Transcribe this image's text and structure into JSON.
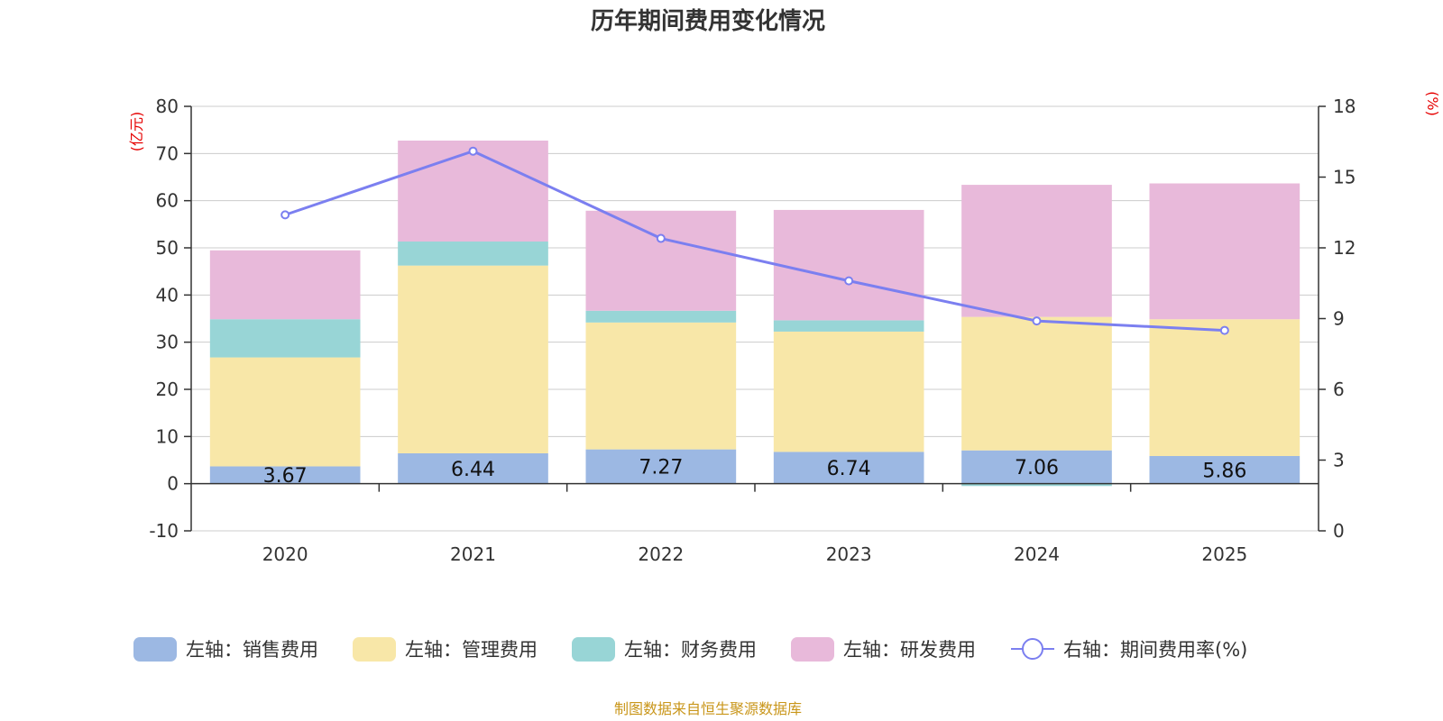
{
  "chart_data": {
    "type": "bar",
    "title": "历年期间费用变化情况",
    "categories": [
      "2020",
      "2021",
      "2022",
      "2023",
      "2024",
      "2025"
    ],
    "stacked": true,
    "series": [
      {
        "name": "左轴：销售费用",
        "axis": "left",
        "color": "#9cb8e3",
        "values": [
          3.67,
          6.44,
          7.27,
          6.74,
          7.06,
          5.86
        ],
        "labels": [
          "3.67",
          "6.44",
          "7.27",
          "6.74",
          "7.06",
          "5.86"
        ]
      },
      {
        "name": "左轴：管理费用",
        "axis": "left",
        "color": "#f8e7a8",
        "values": [
          23.1,
          39.8,
          26.9,
          25.5,
          28.3,
          29.0
        ]
      },
      {
        "name": "左轴：财务费用",
        "axis": "left",
        "color": "#98d5d6",
        "values": [
          8.1,
          5.1,
          2.5,
          2.4,
          -0.5,
          0.0
        ]
      },
      {
        "name": "左轴：研发费用",
        "axis": "left",
        "color": "#e8b9da",
        "values": [
          14.6,
          21.4,
          21.2,
          23.4,
          28.0,
          28.8
        ]
      }
    ],
    "line_series": {
      "name": "右轴：期间费用率(%)",
      "axis": "right",
      "color": "#7b7ff0",
      "values": [
        13.4,
        16.1,
        12.4,
        10.6,
        8.9,
        8.5
      ]
    },
    "y_left": {
      "unit": "(亿元)",
      "min": -10,
      "max": 80,
      "ticks": [
        -10,
        0,
        10,
        20,
        30,
        40,
        50,
        60,
        70,
        80
      ]
    },
    "y_right": {
      "unit": "(%)",
      "min": 0,
      "max": 18,
      "ticks": [
        0,
        3,
        6,
        9,
        12,
        15,
        18
      ]
    },
    "grid": true,
    "legend_position": "bottom",
    "source": "制图数据来自恒生聚源数据库"
  }
}
